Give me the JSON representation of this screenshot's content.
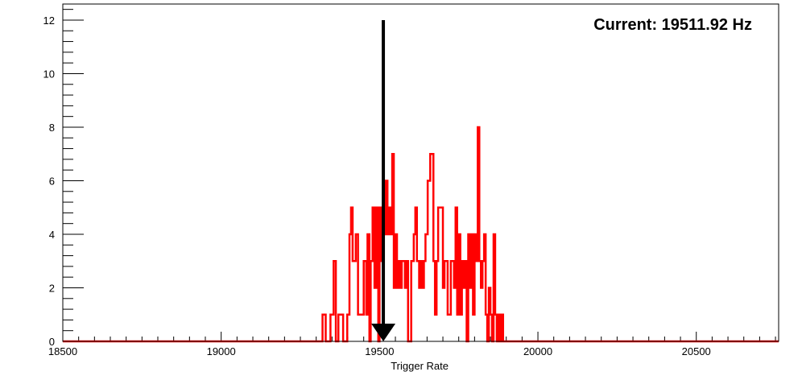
{
  "chart_data": {
    "type": "histogram",
    "xlabel": "Trigger Rate",
    "ylabel": "",
    "xlim": [
      18500,
      20760
    ],
    "ylim": [
      0,
      12.6
    ],
    "x_ticks": [
      18500,
      19000,
      19500,
      20000,
      20500
    ],
    "y_ticks": [
      0,
      2,
      4,
      6,
      8,
      10,
      12
    ],
    "annotation": "Current: 19511.92 Hz",
    "marker_x": 19511.92,
    "series": [
      {
        "color": "#ff0000",
        "bins": [
          {
            "x": 18500,
            "y": 0
          },
          {
            "x": 19320,
            "y": 1
          },
          {
            "x": 19330,
            "y": 0
          },
          {
            "x": 19345,
            "y": 1
          },
          {
            "x": 19355,
            "y": 3
          },
          {
            "x": 19362,
            "y": 0
          },
          {
            "x": 19370,
            "y": 1
          },
          {
            "x": 19385,
            "y": 0
          },
          {
            "x": 19398,
            "y": 1
          },
          {
            "x": 19405,
            "y": 4
          },
          {
            "x": 19410,
            "y": 5
          },
          {
            "x": 19415,
            "y": 3
          },
          {
            "x": 19425,
            "y": 4
          },
          {
            "x": 19432,
            "y": 1
          },
          {
            "x": 19450,
            "y": 3
          },
          {
            "x": 19458,
            "y": 1
          },
          {
            "x": 19462,
            "y": 4
          },
          {
            "x": 19468,
            "y": 0
          },
          {
            "x": 19472,
            "y": 3
          },
          {
            "x": 19478,
            "y": 5
          },
          {
            "x": 19484,
            "y": 2
          },
          {
            "x": 19490,
            "y": 5
          },
          {
            "x": 19496,
            "y": 0
          },
          {
            "x": 19500,
            "y": 5
          },
          {
            "x": 19505,
            "y": 3
          },
          {
            "x": 19510,
            "y": 5
          },
          {
            "x": 19515,
            "y": 4
          },
          {
            "x": 19520,
            "y": 6
          },
          {
            "x": 19525,
            "y": 4
          },
          {
            "x": 19530,
            "y": 5
          },
          {
            "x": 19535,
            "y": 4
          },
          {
            "x": 19540,
            "y": 7
          },
          {
            "x": 19545,
            "y": 2
          },
          {
            "x": 19550,
            "y": 4
          },
          {
            "x": 19555,
            "y": 2
          },
          {
            "x": 19560,
            "y": 3
          },
          {
            "x": 19565,
            "y": 2
          },
          {
            "x": 19570,
            "y": 3
          },
          {
            "x": 19580,
            "y": 2
          },
          {
            "x": 19585,
            "y": 3
          },
          {
            "x": 19590,
            "y": 0
          },
          {
            "x": 19600,
            "y": 3
          },
          {
            "x": 19608,
            "y": 4
          },
          {
            "x": 19613,
            "y": 5
          },
          {
            "x": 19618,
            "y": 3
          },
          {
            "x": 19625,
            "y": 2
          },
          {
            "x": 19630,
            "y": 3
          },
          {
            "x": 19635,
            "y": 2
          },
          {
            "x": 19640,
            "y": 3
          },
          {
            "x": 19645,
            "y": 4
          },
          {
            "x": 19652,
            "y": 6
          },
          {
            "x": 19660,
            "y": 7
          },
          {
            "x": 19670,
            "y": 3
          },
          {
            "x": 19675,
            "y": 1
          },
          {
            "x": 19680,
            "y": 3
          },
          {
            "x": 19685,
            "y": 5
          },
          {
            "x": 19700,
            "y": 2
          },
          {
            "x": 19705,
            "y": 3
          },
          {
            "x": 19715,
            "y": 1
          },
          {
            "x": 19725,
            "y": 3
          },
          {
            "x": 19735,
            "y": 2
          },
          {
            "x": 19740,
            "y": 5
          },
          {
            "x": 19745,
            "y": 1
          },
          {
            "x": 19750,
            "y": 4
          },
          {
            "x": 19755,
            "y": 1
          },
          {
            "x": 19760,
            "y": 3
          },
          {
            "x": 19765,
            "y": 2
          },
          {
            "x": 19770,
            "y": 3
          },
          {
            "x": 19775,
            "y": 0
          },
          {
            "x": 19780,
            "y": 4
          },
          {
            "x": 19785,
            "y": 2
          },
          {
            "x": 19790,
            "y": 4
          },
          {
            "x": 19795,
            "y": 1
          },
          {
            "x": 19800,
            "y": 4
          },
          {
            "x": 19805,
            "y": 3
          },
          {
            "x": 19810,
            "y": 8
          },
          {
            "x": 19815,
            "y": 3
          },
          {
            "x": 19820,
            "y": 2
          },
          {
            "x": 19825,
            "y": 3
          },
          {
            "x": 19830,
            "y": 4
          },
          {
            "x": 19835,
            "y": 1
          },
          {
            "x": 19840,
            "y": 0
          },
          {
            "x": 19845,
            "y": 2
          },
          {
            "x": 19850,
            "y": 1
          },
          {
            "x": 19855,
            "y": 0
          },
          {
            "x": 19860,
            "y": 4
          },
          {
            "x": 19865,
            "y": 1
          },
          {
            "x": 19870,
            "y": 0
          },
          {
            "x": 19875,
            "y": 1
          },
          {
            "x": 19880,
            "y": 0
          },
          {
            "x": 19885,
            "y": 1
          },
          {
            "x": 19890,
            "y": 0
          }
        ]
      }
    ]
  }
}
